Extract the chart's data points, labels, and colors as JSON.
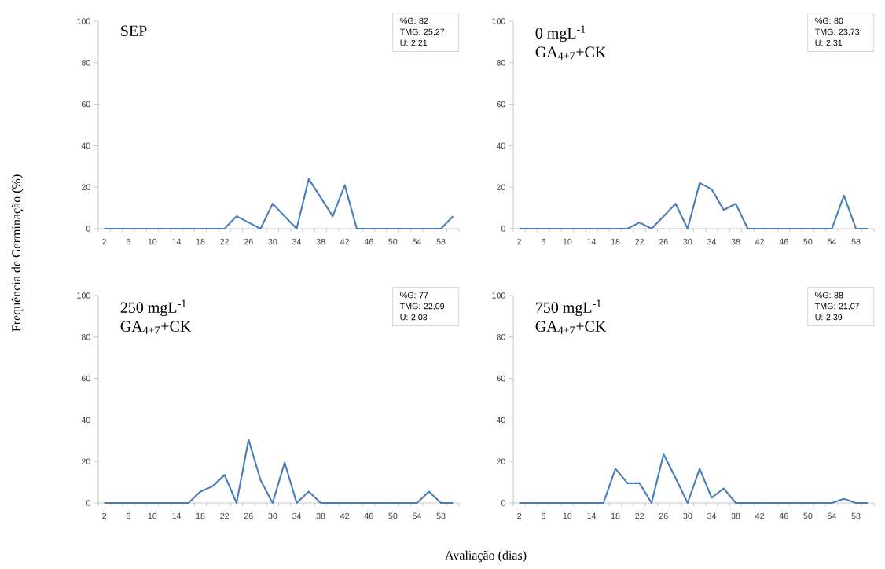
{
  "chart_data": [
    {
      "type": "line",
      "title": "SEP",
      "ylabel": "Frequência de Germinação (%)",
      "categories": [
        "2",
        null,
        "6",
        null,
        "10",
        null,
        "14",
        null,
        "18",
        null,
        "22",
        null,
        "26",
        null,
        "30",
        null,
        "34",
        null,
        "38",
        null,
        "42",
        null,
        "46",
        null,
        "50",
        null,
        "54",
        null,
        "58",
        null
      ],
      "series": [
        {
          "color": "#4a7ebb",
          "values": [
            0,
            0,
            0,
            0,
            0,
            0,
            0,
            0,
            0,
            0,
            0,
            6,
            3,
            0,
            12,
            6,
            0,
            24,
            15,
            6,
            21,
            0,
            0,
            0,
            0,
            0,
            0,
            0,
            0,
            6
          ]
        }
      ],
      "ylim": [
        0,
        100
      ],
      "yticks": [
        0,
        20,
        40,
        60,
        80,
        100
      ],
      "marker": "none",
      "line_style": "solid",
      "annotations": [
        "%G: 82",
        "TMG: 25,27",
        "U: 2,21"
      ]
    },
    {
      "type": "line",
      "title": "0 mgL$^{-1}$",
      "subtitle": "GA$_{4+7}$+CK",
      "categories": [
        "2",
        null,
        "6",
        null,
        "10",
        null,
        "14",
        null,
        "18",
        null,
        "22",
        null,
        "26",
        null,
        "30",
        null,
        "34",
        null,
        "38",
        null,
        "42",
        null,
        "46",
        null,
        "50",
        null,
        "54",
        null,
        "58",
        null
      ],
      "series": [
        {
          "color": "#4a7ebb",
          "values": [
            0,
            0,
            0,
            0,
            0,
            0,
            0,
            0,
            0,
            0,
            3,
            0,
            6,
            12,
            0,
            22,
            19,
            9,
            12,
            0,
            0,
            0,
            0,
            0,
            0,
            0,
            0,
            16,
            0,
            0
          ]
        }
      ],
      "ylim": [
        0,
        100
      ],
      "yticks": [
        0,
        20,
        40,
        60,
        80,
        100
      ],
      "marker": "none",
      "line_style": "solid",
      "annotations": [
        "%G: 80",
        "TMG: 23,73",
        "U: 2,31"
      ]
    },
    {
      "type": "line",
      "title": "250 mgL$^{-1}$",
      "subtitle": "GA$_{4+7}$+CK",
      "xlabel": "Avaliação (dias)",
      "categories": [
        "2",
        null,
        "6",
        null,
        "10",
        null,
        "14",
        null,
        "18",
        null,
        "22",
        null,
        "26",
        null,
        "30",
        null,
        "34",
        null,
        "38",
        null,
        "42",
        null,
        "46",
        null,
        "50",
        null,
        "54",
        null,
        "58",
        null
      ],
      "series": [
        {
          "color": "#4a7ebb",
          "values": [
            0,
            0,
            0,
            0,
            0,
            0,
            0,
            0,
            5.5,
            8,
            13.5,
            0,
            30.5,
            11,
            0,
            19.5,
            0,
            5.5,
            0,
            0,
            0,
            0,
            0,
            0,
            0,
            0,
            0,
            5.5,
            0,
            0
          ]
        }
      ],
      "ylim": [
        0,
        100
      ],
      "yticks": [
        0,
        20,
        40,
        60,
        80,
        100
      ],
      "marker": "none",
      "line_style": "solid",
      "annotations": [
        "%G: 77",
        "TMG: 22,09",
        "U: 2,03"
      ]
    },
    {
      "type": "line",
      "title": "750 mgL$^{-1}$",
      "subtitle": "GA$_{4+7}$+CK",
      "categories": [
        "2",
        null,
        "6",
        null,
        "10",
        null,
        "14",
        null,
        "18",
        null,
        "22",
        null,
        "26",
        null,
        "30",
        null,
        "34",
        null,
        "38",
        null,
        "42",
        null,
        "46",
        null,
        "50",
        null,
        "54",
        null,
        "58",
        null
      ],
      "series": [
        {
          "color": "#4a7ebb",
          "values": [
            0,
            0,
            0,
            0,
            0,
            0,
            0,
            0,
            16.5,
            9.5,
            9.5,
            0,
            23.5,
            12,
            0,
            16.5,
            2.5,
            7,
            0,
            0,
            0,
            0,
            0,
            0,
            0,
            0,
            0,
            2,
            0,
            0
          ]
        }
      ],
      "ylim": [
        0,
        100
      ],
      "yticks": [
        0,
        20,
        40,
        60,
        80,
        100
      ],
      "marker": "none",
      "line_style": "solid",
      "annotations": [
        "%G: 88",
        "TMG: 21,07",
        "U: 2,39"
      ]
    }
  ]
}
